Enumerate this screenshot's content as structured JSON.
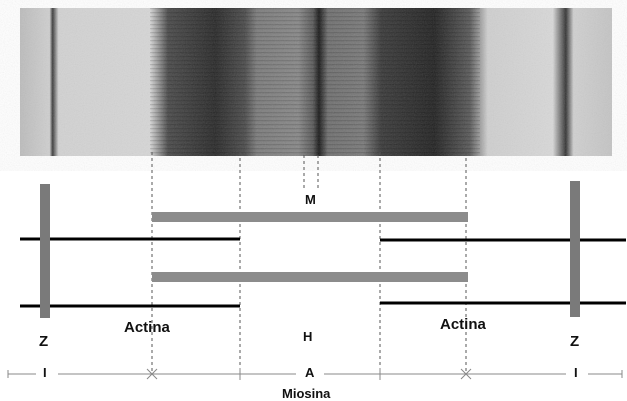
{
  "labels": {
    "z_left": "Z",
    "z_right": "Z",
    "actina_left": "Actina",
    "actina_right": "Actina",
    "m": "M",
    "h": "H",
    "i_left": "I",
    "i_right": "I",
    "a": "A",
    "miosina": "Miosina"
  },
  "colors": {
    "background": "#ffffff",
    "micrograph_light": "#d4d4d4",
    "micrograph_dark": "#2e2e2e",
    "z_disc": "#7a7a7a",
    "myosin": "#8c8c8c",
    "actin": "#000000",
    "guide_dashed": "#555555",
    "scale_line": "#888888"
  }
}
